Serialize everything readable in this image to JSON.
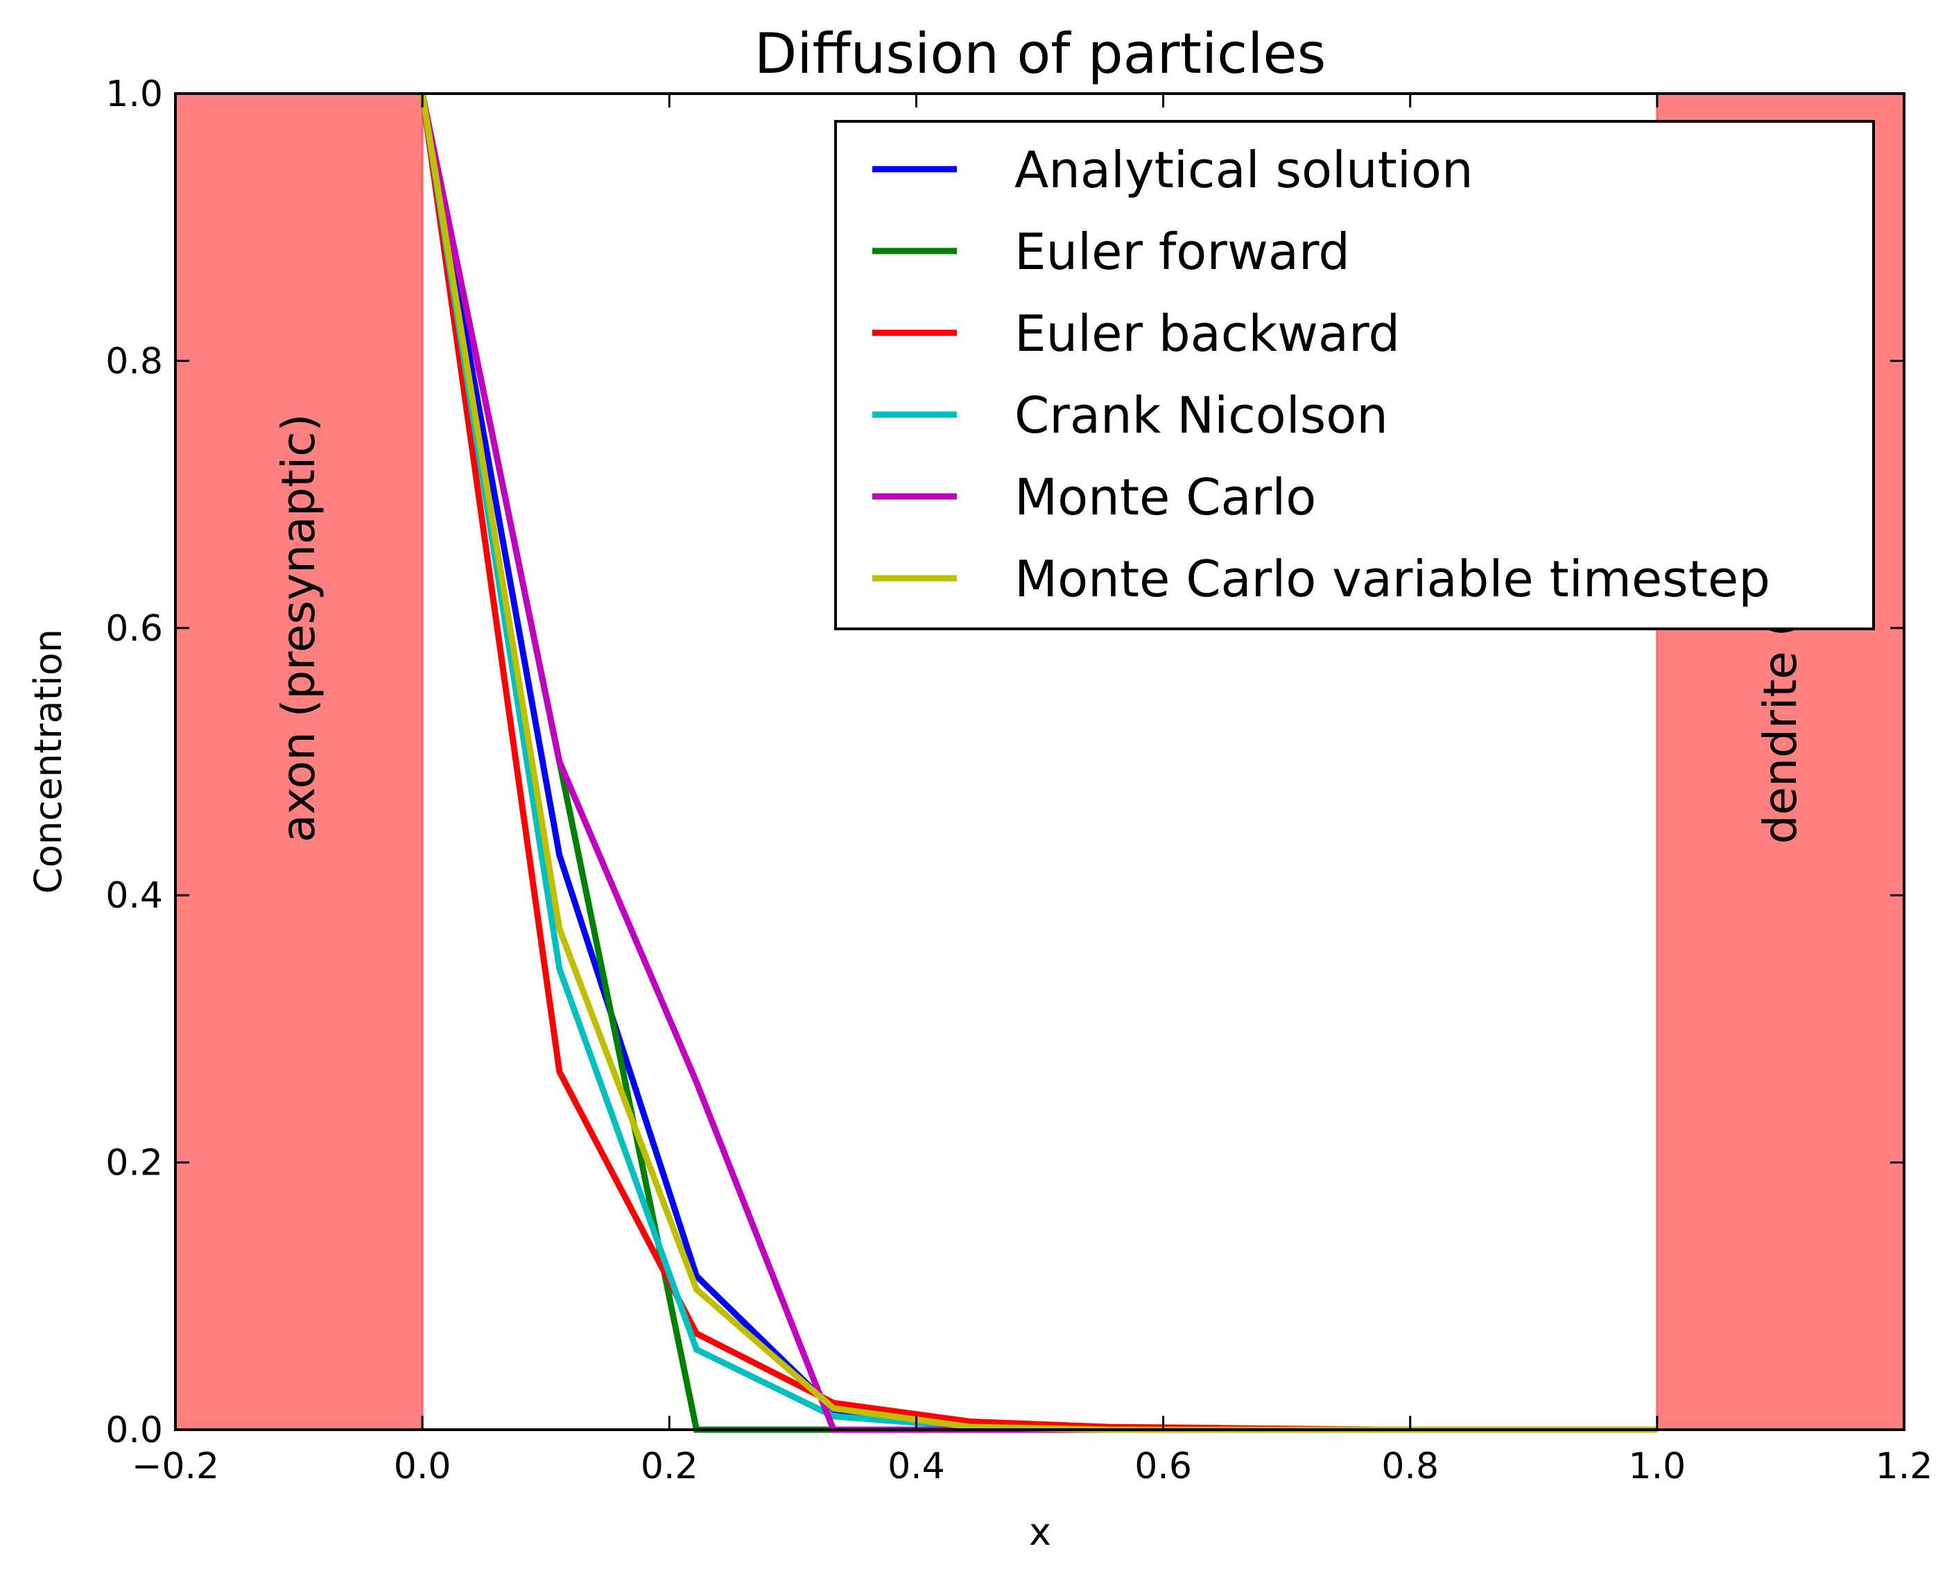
{
  "chart_data": {
    "type": "line",
    "title": "Diffusion of particles",
    "xlabel": "x",
    "ylabel": "Concentration",
    "xlim": [
      -0.2,
      1.2
    ],
    "ylim": [
      0.0,
      1.0
    ],
    "xticks": [
      "−0.2",
      "0.0",
      "0.2",
      "0.4",
      "0.6",
      "0.8",
      "1.0",
      "1.2"
    ],
    "yticks": [
      "0.0",
      "0.2",
      "0.4",
      "0.6",
      "0.8",
      "1.0"
    ],
    "grid": false,
    "legend_position": "top-right",
    "shaded_regions": [
      {
        "label": "axon (presynaptic)",
        "x_from": -0.2,
        "x_to": 0.0,
        "color": "#ff8080"
      },
      {
        "label": "dendrite (postsyna",
        "x_from": 1.0,
        "x_to": 1.2,
        "color": "#ff8080"
      }
    ],
    "series": [
      {
        "name": "Analytical solution",
        "color": "#0000ff",
        "x": [
          0.0,
          0.111,
          0.222,
          0.333,
          0.444,
          0.556,
          0.667,
          0.778,
          0.889,
          1.0
        ],
        "y": [
          1.0,
          0.43,
          0.115,
          0.015,
          0.002,
          0.0,
          0.0,
          0.0,
          0.0,
          0.0
        ]
      },
      {
        "name": "Euler forward",
        "color": "#008000",
        "x": [
          0.0,
          0.111,
          0.222,
          0.333,
          0.444,
          0.556,
          0.667,
          0.778,
          0.889,
          1.0
        ],
        "y": [
          1.0,
          0.5,
          0.0,
          0.0,
          0.0,
          0.0,
          0.0,
          0.0,
          0.0,
          0.0
        ]
      },
      {
        "name": "Euler backward",
        "color": "#ff0000",
        "x": [
          0.0,
          0.111,
          0.222,
          0.333,
          0.444,
          0.556,
          0.667,
          0.778,
          0.889,
          1.0
        ],
        "y": [
          1.0,
          0.268,
          0.072,
          0.02,
          0.006,
          0.002,
          0.001,
          0.0,
          0.0,
          0.0
        ]
      },
      {
        "name": "Crank Nicolson",
        "color": "#00bfbf",
        "x": [
          0.0,
          0.111,
          0.222,
          0.333,
          0.444,
          0.556,
          0.667,
          0.778,
          0.889,
          1.0
        ],
        "y": [
          1.0,
          0.345,
          0.06,
          0.01,
          0.002,
          0.0,
          0.0,
          0.0,
          0.0,
          0.0
        ]
      },
      {
        "name": "Monte Carlo",
        "color": "#bf00bf",
        "x": [
          0.0,
          0.111,
          0.222,
          0.333,
          0.444,
          0.556,
          0.667,
          0.778,
          0.889,
          1.0
        ],
        "y": [
          1.0,
          0.5,
          0.26,
          0.0,
          0.0,
          0.0,
          0.0,
          0.0,
          0.0,
          0.0
        ]
      },
      {
        "name": "Monte Carlo variable timestep",
        "color": "#bfbf00",
        "x": [
          0.0,
          0.111,
          0.222,
          0.333,
          0.444,
          0.556,
          0.667,
          0.778,
          0.889,
          1.0
        ],
        "y": [
          1.0,
          0.375,
          0.105,
          0.016,
          0.002,
          0.0,
          0.0,
          0.0,
          0.0,
          0.0
        ]
      }
    ]
  }
}
